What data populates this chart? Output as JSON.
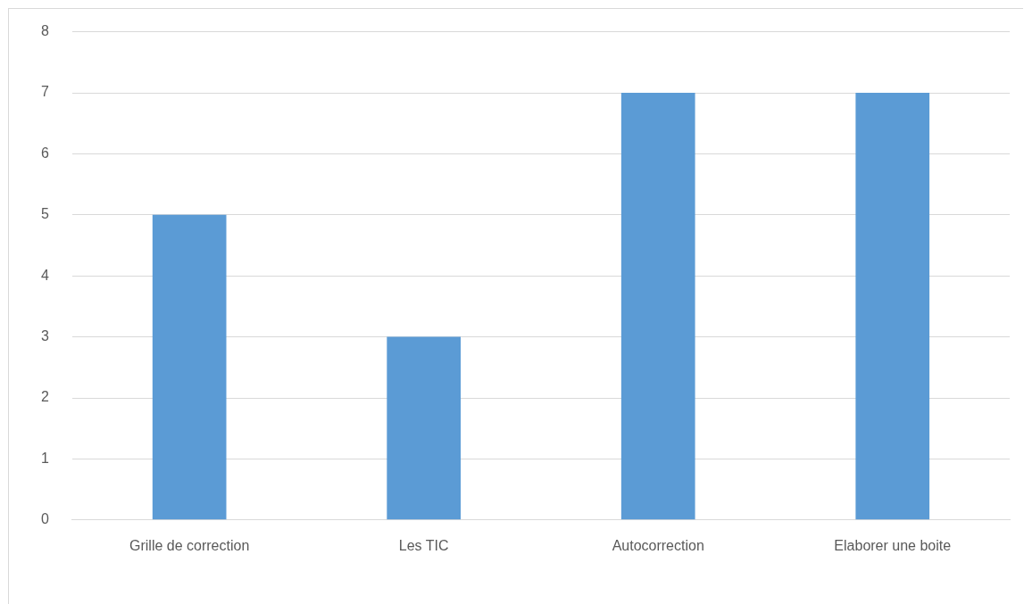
{
  "chart_data": {
    "type": "bar",
    "categories": [
      "Grille de correction",
      "Les TIC",
      "Autocorrection",
      "Elaborer une boite"
    ],
    "values": [
      5,
      3,
      7,
      7
    ],
    "color": "#5b9bd5",
    "ylim": [
      0,
      8
    ],
    "yticks": [
      0,
      1,
      2,
      3,
      4,
      5,
      6,
      7,
      8
    ],
    "grid": "y",
    "legend": false
  }
}
